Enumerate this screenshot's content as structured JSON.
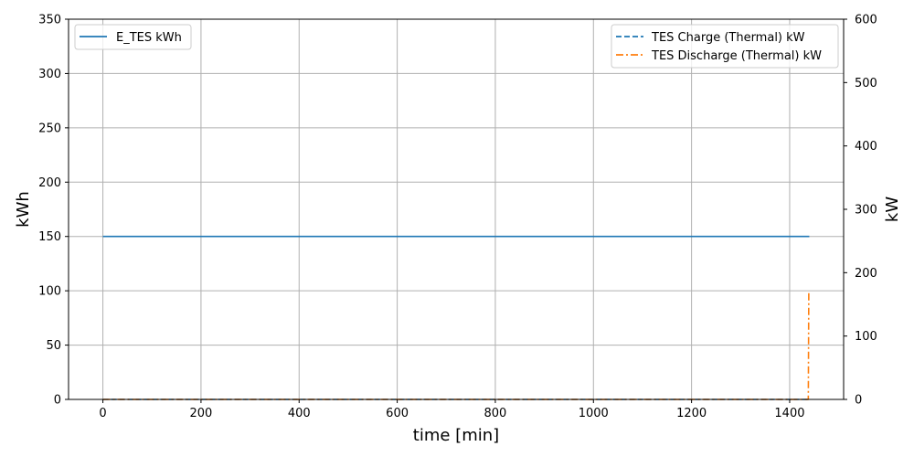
{
  "chart_data": {
    "type": "line",
    "xlabel": "time [min]",
    "ylabel_left": "kWh",
    "ylabel_right": "kW",
    "xlim": [
      -70,
      1510
    ],
    "ylim_left": [
      0,
      350
    ],
    "ylim_right": [
      0,
      600
    ],
    "xticks": [
      0,
      200,
      400,
      600,
      800,
      1000,
      1200,
      1400
    ],
    "yticks_left": [
      0,
      50,
      100,
      150,
      200,
      250,
      300,
      350
    ],
    "yticks_right": [
      0,
      100,
      200,
      300,
      400,
      500,
      600
    ],
    "grid": true,
    "legend_left_position": "upper-left",
    "legend_right_position": "upper-right",
    "series": [
      {
        "name": "E_TES kWh",
        "axis": "left",
        "style": "solid",
        "color": "#1f77b4",
        "x": [
          0,
          1440
        ],
        "y": [
          150,
          150
        ]
      },
      {
        "name": "TES Charge (Thermal) kW",
        "axis": "right",
        "style": "dashed",
        "color": "#1f77b4",
        "x": [
          0,
          1440
        ],
        "y": [
          0,
          0
        ]
      },
      {
        "name": "TES Discharge (Thermal) kW",
        "axis": "right",
        "style": "dashdot",
        "color": "#ff7f0e",
        "x": [
          0,
          1438,
          1439,
          1440
        ],
        "y": [
          0,
          0,
          170,
          170
        ]
      }
    ]
  }
}
